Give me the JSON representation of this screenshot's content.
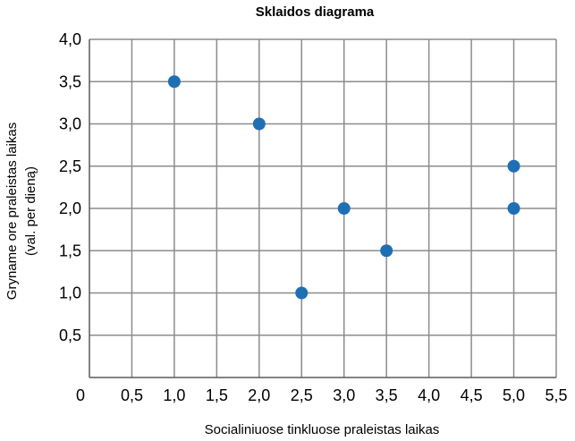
{
  "chart_data": {
    "type": "scatter",
    "title": "Sklaidos diagrama",
    "xlabel": "Socialiniuose tinkluose praleistas laikas",
    "ylabel_line1": "Gryname ore praleistas laikas",
    "ylabel_line2": "(val. per dieną)",
    "xlim": [
      0,
      5.5
    ],
    "ylim": [
      0,
      4.0
    ],
    "x_ticks": [
      "0",
      "0,5",
      "1,0",
      "1,5",
      "2,0",
      "2,5",
      "3,0",
      "3,5",
      "4,0",
      "4,5",
      "5,0",
      "5,5"
    ],
    "y_ticks": [
      "0,5",
      "1,0",
      "1,5",
      "2,0",
      "2,5",
      "3,0",
      "3,5",
      "4,0"
    ],
    "grid": true,
    "point_color": "#1f6fb5",
    "series": [
      {
        "points": [
          {
            "x": 1.0,
            "y": 3.5
          },
          {
            "x": 2.0,
            "y": 3.0
          },
          {
            "x": 2.5,
            "y": 1.0
          },
          {
            "x": 3.0,
            "y": 2.0
          },
          {
            "x": 3.5,
            "y": 1.5
          },
          {
            "x": 5.0,
            "y": 2.5
          },
          {
            "x": 5.0,
            "y": 2.0
          }
        ]
      }
    ]
  }
}
